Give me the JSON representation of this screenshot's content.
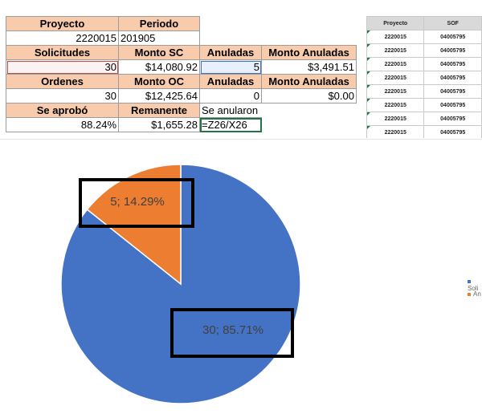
{
  "summary": {
    "proyecto_hdr": "Proyecto",
    "periodo_hdr": "Periodo",
    "proyecto_val": "2220015",
    "periodo_val": "201905",
    "solicitudes_hdr": "Solicitudes",
    "monto_sc_hdr": "Monto SC",
    "anuladas_hdr_1": "Anuladas",
    "monto_anuladas_hdr_1": "Monto Anuladas",
    "solicitudes_val": "30",
    "monto_sc_val": "$14,080.92",
    "anuladas_val_1": "5",
    "monto_anuladas_val_1": "$3,491.51",
    "ordenes_hdr": "Ordenes",
    "monto_oc_hdr": "Monto OC",
    "anuladas_hdr_2": "Anuladas",
    "monto_anuladas_hdr_2": "Monto Anuladas",
    "ordenes_val": "30",
    "monto_oc_val": "$12,425.64",
    "anuladas_val_2": "0",
    "monto_anuladas_val_2": "$0.00",
    "se_aprobo_hdr": "Se aprobó",
    "remanente_hdr": "Remanente",
    "se_anularon_label": "Se anularon",
    "se_aprobo_val": "88.24%",
    "remanente_val": "$1,655.28",
    "formula_val": "=Z26/X26"
  },
  "side_table": {
    "headers": [
      "Proyecto",
      "SOF"
    ],
    "rows": [
      [
        "2220015",
        "04005795"
      ],
      [
        "2220015",
        "04005795"
      ],
      [
        "2220015",
        "04005795"
      ],
      [
        "2220015",
        "04005795"
      ],
      [
        "2220015",
        "04005795"
      ],
      [
        "2220015",
        "04005795"
      ],
      [
        "2220015",
        "04005795"
      ],
      [
        "2220015",
        "04005795"
      ]
    ]
  },
  "chart_data": {
    "type": "pie",
    "title": "",
    "labels": [
      "Solicitudes",
      "Anuladas"
    ],
    "legend_visible_text": [
      "Soli",
      "An"
    ],
    "values": [
      30,
      5
    ],
    "percentages": [
      85.71,
      14.29
    ],
    "data_labels": [
      "30; 85.71%",
      "5; 14.29%"
    ],
    "colors": [
      "#4472c4",
      "#ed7d31"
    ],
    "legend_position": "right"
  }
}
